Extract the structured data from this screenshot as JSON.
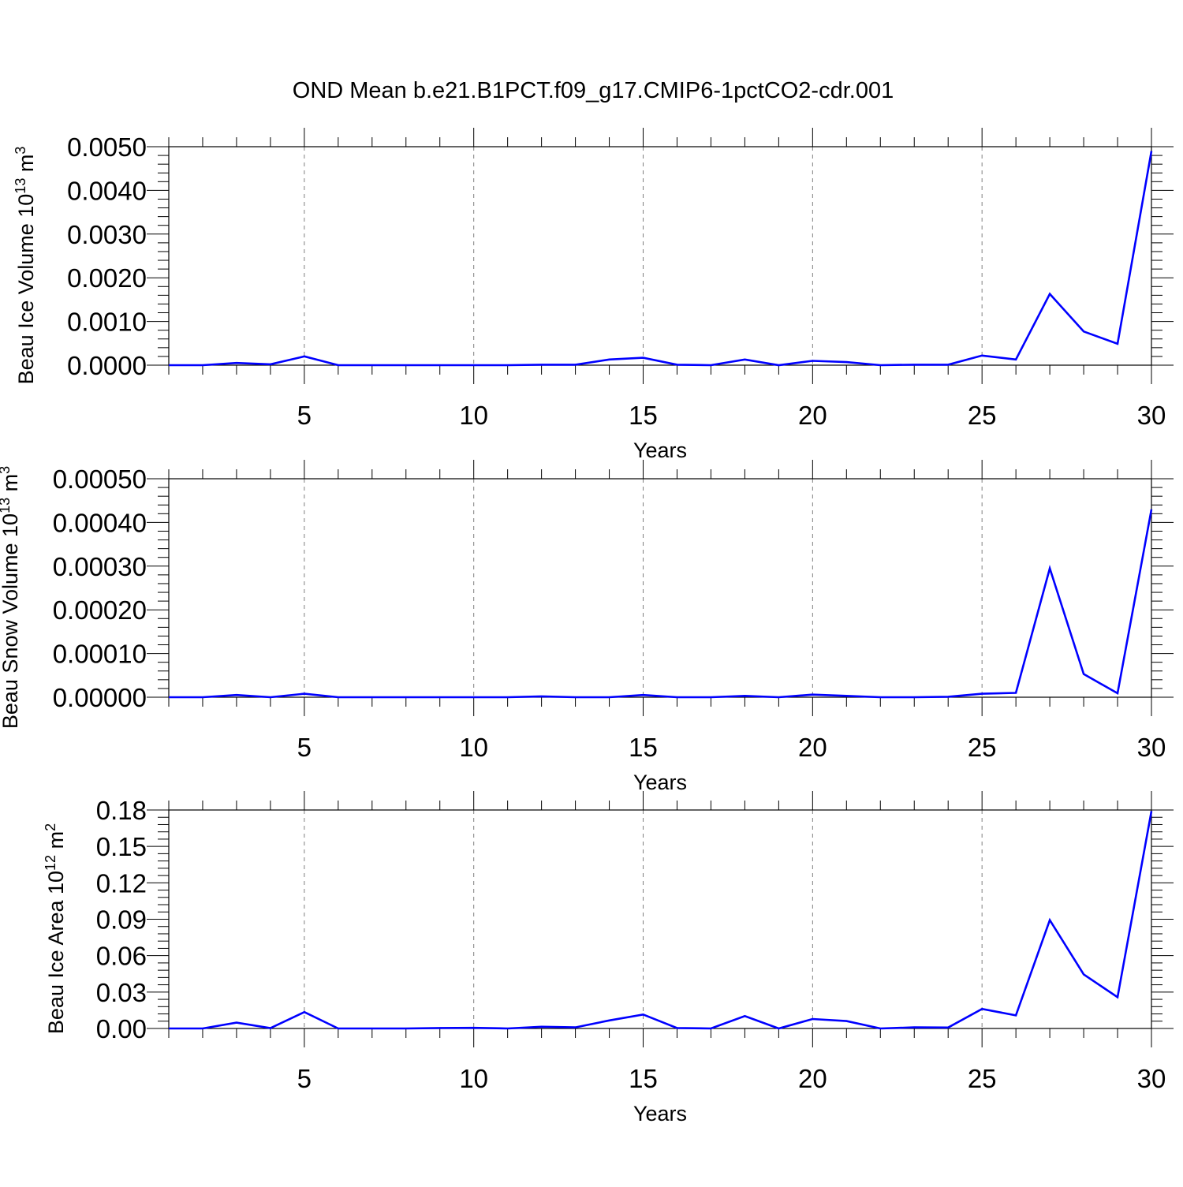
{
  "title": "OND Mean b.e21.B1PCT.f09_g17.CMIP6-1pctCO2-cdr.001",
  "colors": {
    "series": "#0000ff",
    "axis": "#000000",
    "grid": "#7f7f7f",
    "background": "#ffffff"
  },
  "chart_data": [
    {
      "type": "line",
      "ylabel": {
        "prefix": "Beau Ice Volume 10",
        "sup": "13",
        "suffix": " m",
        "sup2": "3"
      },
      "xlabel": "Years",
      "xlim": [
        1,
        30
      ],
      "ylim": [
        0,
        0.005
      ],
      "x_ticks": [
        5,
        10,
        15,
        20,
        25,
        30
      ],
      "y_ticks": [
        0,
        0.001,
        0.002,
        0.003,
        0.004,
        0.005
      ],
      "y_tick_labels": [
        "0.0000",
        "0.0010",
        "0.0020",
        "0.0030",
        "0.0040",
        "0.0050"
      ],
      "grid": "vertical dashed",
      "series": [
        {
          "x": [
            1,
            2,
            3,
            4,
            5,
            6,
            7,
            8,
            9,
            10,
            11,
            12,
            13,
            14,
            15,
            16,
            17,
            18,
            19,
            20,
            21,
            22,
            23,
            24,
            25,
            26,
            27,
            28,
            29,
            30
          ],
          "values": [
            0.0,
            0.0,
            5e-05,
            2e-05,
            0.0002,
            0.0,
            0.0,
            0.0,
            0.0,
            0.0,
            0.0,
            1e-05,
            1e-05,
            0.00013,
            0.00017,
            1e-05,
            0.0,
            0.00013,
            0.0,
            0.0001,
            7e-05,
            0.0,
            1e-05,
            1e-05,
            0.00022,
            0.00013,
            0.00163,
            0.00077,
            0.00049,
            0.0049
          ]
        }
      ]
    },
    {
      "type": "line",
      "ylabel": {
        "prefix": "Beau Snow Volume 10",
        "sup": "13",
        "suffix": " m",
        "sup2": "3"
      },
      "xlabel": "Years",
      "xlim": [
        1,
        30
      ],
      "ylim": [
        0,
        0.0005
      ],
      "x_ticks": [
        5,
        10,
        15,
        20,
        25,
        30
      ],
      "y_ticks": [
        0,
        0.0001,
        0.0002,
        0.0003,
        0.0004,
        0.0005
      ],
      "y_tick_labels": [
        "0.00000",
        "0.00010",
        "0.00020",
        "0.00030",
        "0.00040",
        "0.00050"
      ],
      "grid": "vertical dashed",
      "series": [
        {
          "x": [
            1,
            2,
            3,
            4,
            5,
            6,
            7,
            8,
            9,
            10,
            11,
            12,
            13,
            14,
            15,
            16,
            17,
            18,
            19,
            20,
            21,
            22,
            23,
            24,
            25,
            26,
            27,
            28,
            29,
            30
          ],
          "values": [
            0.0,
            0.0,
            5e-06,
            0.0,
            8e-06,
            0.0,
            0.0,
            0.0,
            0.0,
            0.0,
            0.0,
            2e-06,
            0.0,
            0.0,
            5e-06,
            0.0,
            0.0,
            3e-06,
            0.0,
            6e-06,
            3e-06,
            0.0,
            0.0,
            1e-06,
            8e-06,
            1e-05,
            0.000295,
            5.3e-05,
            9e-06,
            0.00043
          ]
        }
      ]
    },
    {
      "type": "line",
      "ylabel": {
        "prefix": "Beau Ice Area 10",
        "sup": "12",
        "suffix": " m",
        "sup2": "2"
      },
      "xlabel": "Years",
      "xlim": [
        1,
        30
      ],
      "ylim": [
        0,
        0.18
      ],
      "x_ticks": [
        5,
        10,
        15,
        20,
        25,
        30
      ],
      "y_ticks": [
        0,
        0.03,
        0.06,
        0.09,
        0.12,
        0.15,
        0.18
      ],
      "y_tick_labels": [
        "0.00",
        "0.03",
        "0.06",
        "0.09",
        "0.12",
        "0.15",
        "0.18"
      ],
      "grid": "vertical dashed",
      "series": [
        {
          "x": [
            1,
            2,
            3,
            4,
            5,
            6,
            7,
            8,
            9,
            10,
            11,
            12,
            13,
            14,
            15,
            16,
            17,
            18,
            19,
            20,
            21,
            22,
            23,
            24,
            25,
            26,
            27,
            28,
            29,
            30
          ],
          "values": [
            0.0,
            0.0,
            0.0048,
            0.0003,
            0.0135,
            0.0,
            0.0,
            0.0,
            0.0004,
            0.0005,
            0.0,
            0.0014,
            0.0009,
            0.0066,
            0.0115,
            0.0004,
            0.0,
            0.0102,
            0.0,
            0.0078,
            0.0061,
            0.0,
            0.0009,
            0.0008,
            0.0161,
            0.0108,
            0.0893,
            0.0445,
            0.0258,
            0.1791
          ]
        }
      ]
    }
  ]
}
